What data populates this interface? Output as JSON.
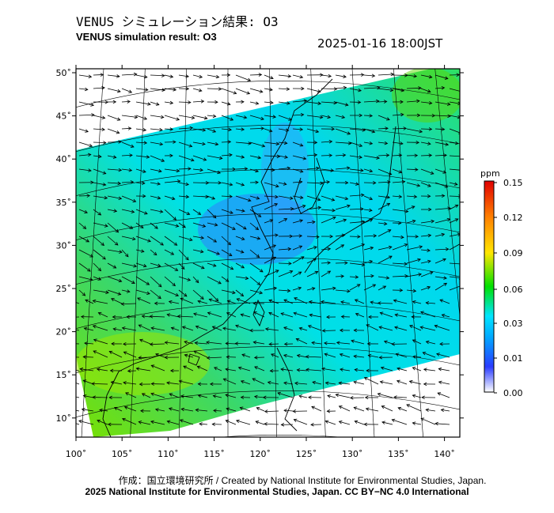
{
  "header": {
    "title_jp": "VENUS シミュレーション結果: O3",
    "title_en": "VENUS simulation result: O3",
    "timestamp": "2025-01-16 18:00JST"
  },
  "map": {
    "lon_ticks": [
      "100˚",
      "105˚",
      "110˚",
      "115˚",
      "120˚",
      "125˚",
      "130˚",
      "135˚",
      "140˚"
    ],
    "lat_ticks": [
      "50˚",
      "45˚",
      "40˚",
      "35˚",
      "30˚",
      "25˚",
      "20˚",
      "15˚",
      "10˚"
    ],
    "variable": "O3",
    "wind_vectors": true,
    "background_colors": {
      "land_outline": "#000000",
      "grid": "#000000"
    }
  },
  "colorbar": {
    "unit": "ppm",
    "labels": [
      "0.15",
      "0.12",
      "0.09",
      "0.06",
      "0.03",
      "0.01",
      "0.00"
    ],
    "colors": [
      "#ffffff",
      "#2a3cff",
      "#00e5ff",
      "#00e000",
      "#ffe600",
      "#ff8000",
      "#e00000"
    ]
  },
  "footer": {
    "credit_line": "作成：国立環境研究所 / Created by National Institute for Environmental Studies, Japan.",
    "license_line": "2025 National Institute for Environmental Studies, Japan. CC BY−NC 4.0 International"
  }
}
